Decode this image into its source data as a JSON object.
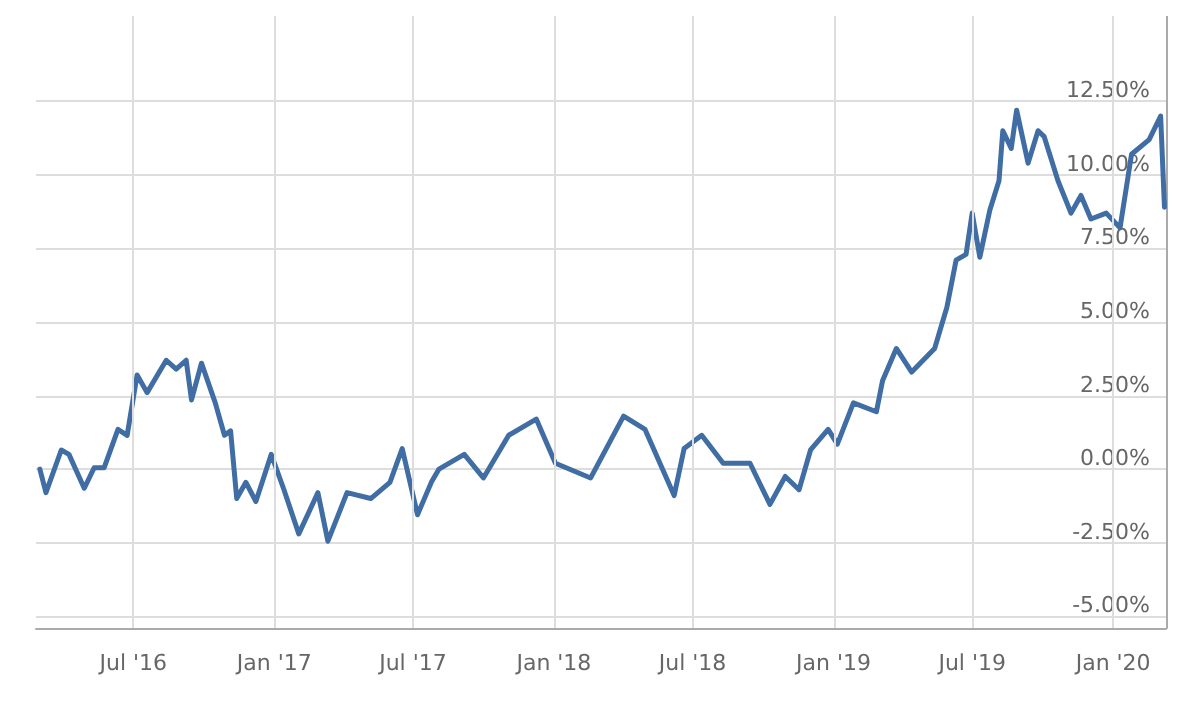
{
  "chart_data": {
    "type": "line",
    "x": [
      "2016-03-01",
      "2016-03-09",
      "2016-03-29",
      "2016-04-08",
      "2016-04-28",
      "2016-05-11",
      "2016-05-24",
      "2016-06-11",
      "2016-06-23",
      "2016-07-06",
      "2016-07-19",
      "2016-08-13",
      "2016-08-26",
      "2016-09-08",
      "2016-09-15",
      "2016-09-28",
      "2016-10-16",
      "2016-10-28",
      "2016-11-05",
      "2016-11-13",
      "2016-11-25",
      "2016-12-08",
      "2016-12-28",
      "2017-01-13",
      "2017-02-02",
      "2017-02-27",
      "2017-03-12",
      "2017-04-06",
      "2017-05-07",
      "2017-06-01",
      "2017-06-17",
      "2017-07-07",
      "2017-07-25",
      "2017-08-04",
      "2017-09-06",
      "2017-10-01",
      "2017-11-03",
      "2017-12-09",
      "2018-01-03",
      "2018-02-18",
      "2018-04-02",
      "2018-04-30",
      "2018-06-07",
      "2018-06-20",
      "2018-07-13",
      "2018-08-10",
      "2018-09-14",
      "2018-10-10",
      "2018-10-30",
      "2018-11-17",
      "2018-12-02",
      "2018-12-25",
      "2019-01-06",
      "2019-01-27",
      "2019-02-26",
      "2019-03-06",
      "2019-03-24",
      "2019-04-13",
      "2019-05-13",
      "2019-05-29",
      "2019-06-10",
      "2019-06-23",
      "2019-07-01",
      "2019-07-11",
      "2019-07-24",
      "2019-08-05",
      "2019-08-10",
      "2019-08-21",
      "2019-08-28",
      "2019-09-12",
      "2019-09-25",
      "2019-10-03",
      "2019-10-21",
      "2019-11-07",
      "2019-11-20",
      "2019-12-03",
      "2019-12-23",
      "2020-01-10",
      "2020-01-25",
      "2020-02-17",
      "2020-03-03",
      "2020-03-08"
    ],
    "series": [
      {
        "color": "#3f6da4",
        "values": [
          0.0,
          -0.8,
          0.65,
          0.5,
          -0.65,
          0.05,
          0.05,
          1.35,
          1.15,
          3.2,
          2.6,
          3.7,
          3.4,
          3.7,
          2.35,
          3.6,
          2.25,
          1.15,
          1.3,
          -1.0,
          -0.45,
          -1.1,
          0.5,
          -0.65,
          -2.2,
          -0.8,
          -2.45,
          -0.8,
          -1.0,
          -0.45,
          0.7,
          -1.55,
          -0.45,
          0.0,
          0.5,
          -0.3,
          1.15,
          1.7,
          0.2,
          -0.3,
          1.8,
          1.35,
          -0.9,
          0.7,
          1.15,
          0.2,
          0.2,
          -1.2,
          -0.25,
          -0.7,
          0.65,
          1.35,
          0.85,
          2.25,
          1.95,
          3.0,
          4.1,
          3.3,
          4.1,
          5.5,
          7.1,
          7.3,
          8.7,
          7.2,
          8.8,
          9.8,
          11.5,
          10.9,
          12.2,
          10.4,
          11.5,
          11.3,
          9.8,
          8.7,
          9.3,
          8.5,
          8.7,
          8.2,
          10.7,
          11.2,
          12.0,
          8.9
        ]
      }
    ],
    "xlim": [
      "2016-02-25",
      "2020-03-10"
    ],
    "xticks": [
      {
        "value": "2016-07-01",
        "label": "Jul '16"
      },
      {
        "value": "2017-01-01",
        "label": "Jan '17"
      },
      {
        "value": "2017-07-01",
        "label": "Jul '17"
      },
      {
        "value": "2018-01-01",
        "label": "Jan '18"
      },
      {
        "value": "2018-07-01",
        "label": "Jul '18"
      },
      {
        "value": "2019-01-01",
        "label": "Jan '19"
      },
      {
        "value": "2019-07-01",
        "label": "Jul '19"
      },
      {
        "value": "2020-01-01",
        "label": "Jan '20"
      }
    ],
    "ylim": [
      -5.4,
      15.4
    ],
    "yticks": [
      {
        "value": -5,
        "label": "-5.00%"
      },
      {
        "value": -2.5,
        "label": "-2.50%"
      },
      {
        "value": 0,
        "label": "0.00%"
      },
      {
        "value": 2.5,
        "label": "2.50%"
      },
      {
        "value": 5,
        "label": "5.00%"
      },
      {
        "value": 7.5,
        "label": "7.50%"
      },
      {
        "value": 10,
        "label": "10.00%"
      },
      {
        "value": 12.5,
        "label": "12.50%"
      }
    ],
    "grid": true,
    "marker": "none",
    "line_style": "solid"
  }
}
